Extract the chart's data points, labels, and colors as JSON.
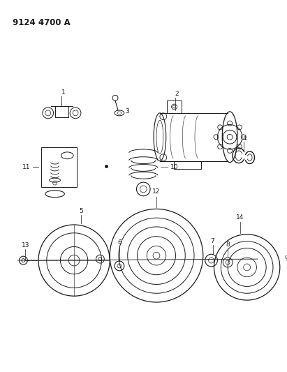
{
  "title": "9124 4700 A",
  "bg": "#ffffff",
  "lc": "#1a1a1a",
  "figsize": [
    4.11,
    5.33
  ],
  "dpi": 100
}
